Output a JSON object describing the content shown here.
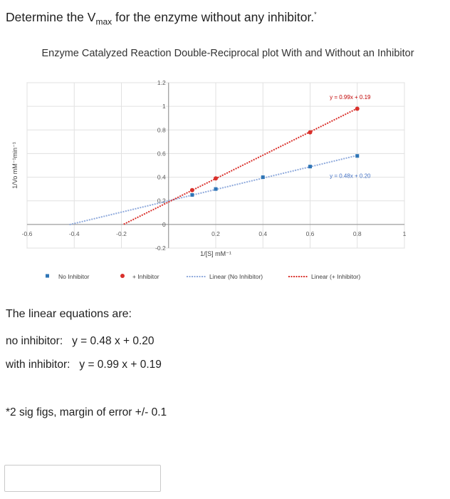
{
  "question": {
    "prefix": "Determine the V",
    "subscript": "max",
    "suffix": " for the enzyme without any inhibitor.",
    "marker": "*"
  },
  "chart_data": {
    "type": "scatter",
    "title": "Enzyme Catalyzed Reaction Double-Reciprocal plot With and Without an Inhibitor",
    "xlabel": "1/[S] mM⁻¹",
    "ylabel": "1/Vo mM⁻¹min⁻¹",
    "xlim": [
      -0.6,
      1.0
    ],
    "ylim": [
      -0.2,
      1.2
    ],
    "x_ticks": [
      "-0.6",
      "-0.4",
      "-0.2",
      "0",
      "0.2",
      "0.4",
      "0.6",
      "0.8",
      "1"
    ],
    "y_ticks": [
      "-0.2",
      "0",
      "0.2",
      "0.4",
      "0.6",
      "0.8",
      "1",
      "1.2"
    ],
    "grid": true,
    "legend_position": "bottom",
    "series": [
      {
        "name": "No Inhibitor",
        "marker": "square",
        "color": "#2e75b6",
        "x": [
          0.1,
          0.2,
          0.4,
          0.6,
          0.8
        ],
        "y": [
          0.25,
          0.3,
          0.4,
          0.49,
          0.58
        ]
      },
      {
        "name": "+ Inhibitor",
        "marker": "circle",
        "color": "#d9302b",
        "x": [
          0.1,
          0.2,
          0.6,
          0.8
        ],
        "y": [
          0.29,
          0.39,
          0.78,
          0.98
        ]
      }
    ],
    "trendlines": [
      {
        "name": "Linear (No Inhibitor)",
        "slope": 0.48,
        "intercept": 0.2,
        "x_range": [
          -0.42,
          0.8
        ],
        "color": "#8faadc",
        "equation": "y = 0.48x + 0.20"
      },
      {
        "name": "Linear (+ Inhibitor)",
        "slope": 0.99,
        "intercept": 0.19,
        "x_range": [
          -0.19,
          0.8
        ],
        "color": "#d9302b",
        "equation": "y = 0.99x + 0.19"
      }
    ]
  },
  "equations": {
    "heading": "The linear equations are:",
    "no_inhibitor_label": "no inhibitor:",
    "no_inhibitor_eq": "y = 0.48 x + 0.20",
    "with_inhibitor_label": "with inhibitor:",
    "with_inhibitor_eq": "y = 0.99 x + 0.19"
  },
  "note": "*2 sig figs, margin of error +/- 0.1",
  "answer": {
    "value": ""
  }
}
